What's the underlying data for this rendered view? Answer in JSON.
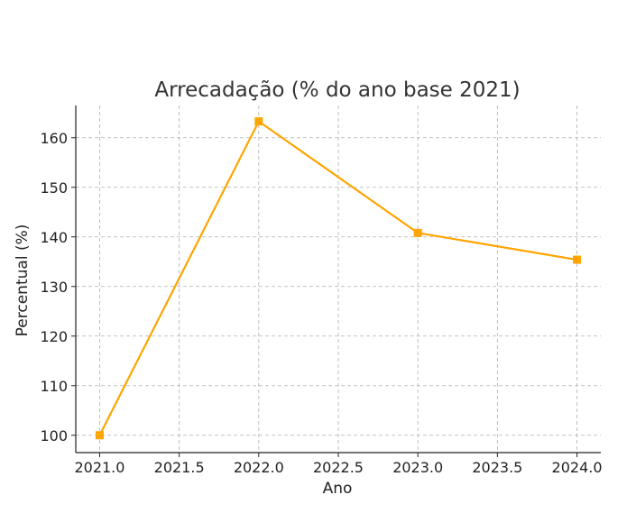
{
  "chart_data": {
    "type": "line",
    "title": "Arrecadação (% do ano base 2021)",
    "xlabel": "Ano",
    "ylabel": "Percentual (%)",
    "x": [
      2021,
      2022,
      2023,
      2024
    ],
    "series": [
      {
        "values": [
          100.0,
          163.3,
          140.8,
          135.4
        ],
        "color": "#FFA500",
        "marker": "square"
      }
    ],
    "xlim": [
      2020.85,
      2024.15
    ],
    "ylim": [
      96.5,
      166.5
    ],
    "xticks": [
      2021.0,
      2021.5,
      2022.0,
      2022.5,
      2023.0,
      2023.5,
      2024.0
    ],
    "xtick_labels": [
      "2021.0",
      "2021.5",
      "2022.0",
      "2022.5",
      "2023.0",
      "2023.5",
      "2024.0"
    ],
    "yticks": [
      100,
      110,
      120,
      130,
      140,
      150,
      160
    ],
    "ytick_labels": [
      "100",
      "110",
      "120",
      "130",
      "140",
      "150",
      "160"
    ],
    "grid": true,
    "spines": [
      "left",
      "bottom"
    ]
  }
}
